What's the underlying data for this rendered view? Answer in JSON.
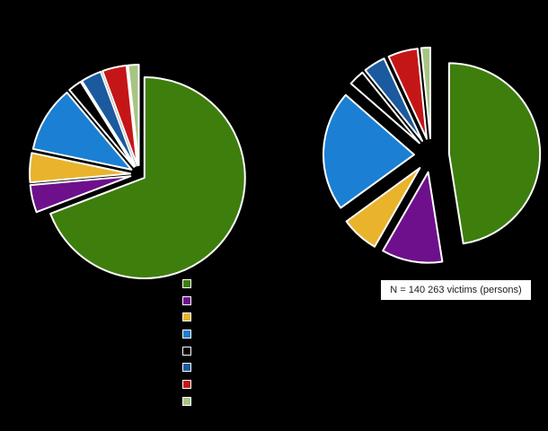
{
  "colors": {
    "green": "#3e7e0d",
    "purple": "#6e108c",
    "yellow": "#e9b42c",
    "blue": "#1b7fd4",
    "black": "#000000",
    "dark-blue": "#1b5a9e",
    "red": "#c51617",
    "light-green": "#a6c583"
  },
  "legend": {
    "items": [
      "green",
      "purple",
      "yellow",
      "blue",
      "black",
      "dark-blue",
      "red",
      "light-green"
    ]
  },
  "chart_data": [
    {
      "type": "pie",
      "position": "left",
      "style": "exploded",
      "start_angle_deg": 0,
      "slices": [
        {
          "name": "green",
          "value": 69.2
        },
        {
          "name": "purple",
          "value": 4.4
        },
        {
          "name": "yellow",
          "value": 4.7
        },
        {
          "name": "blue",
          "value": 10.6
        },
        {
          "name": "black",
          "value": 2.2
        },
        {
          "name": "dark-blue",
          "value": 3.3
        },
        {
          "name": "red",
          "value": 3.9
        },
        {
          "name": "light-green",
          "value": 1.7
        }
      ]
    },
    {
      "type": "pie",
      "position": "right",
      "style": "exploded",
      "start_angle_deg": 0,
      "annotation": "N = 140 263 victims (persons)",
      "slices": [
        {
          "name": "green",
          "value": 47.5
        },
        {
          "name": "purple",
          "value": 10.8
        },
        {
          "name": "yellow",
          "value": 6.7
        },
        {
          "name": "blue",
          "value": 21.4
        },
        {
          "name": "black",
          "value": 2.8
        },
        {
          "name": "dark-blue",
          "value": 3.9
        },
        {
          "name": "red",
          "value": 5.3
        },
        {
          "name": "light-green",
          "value": 1.6
        }
      ]
    }
  ]
}
